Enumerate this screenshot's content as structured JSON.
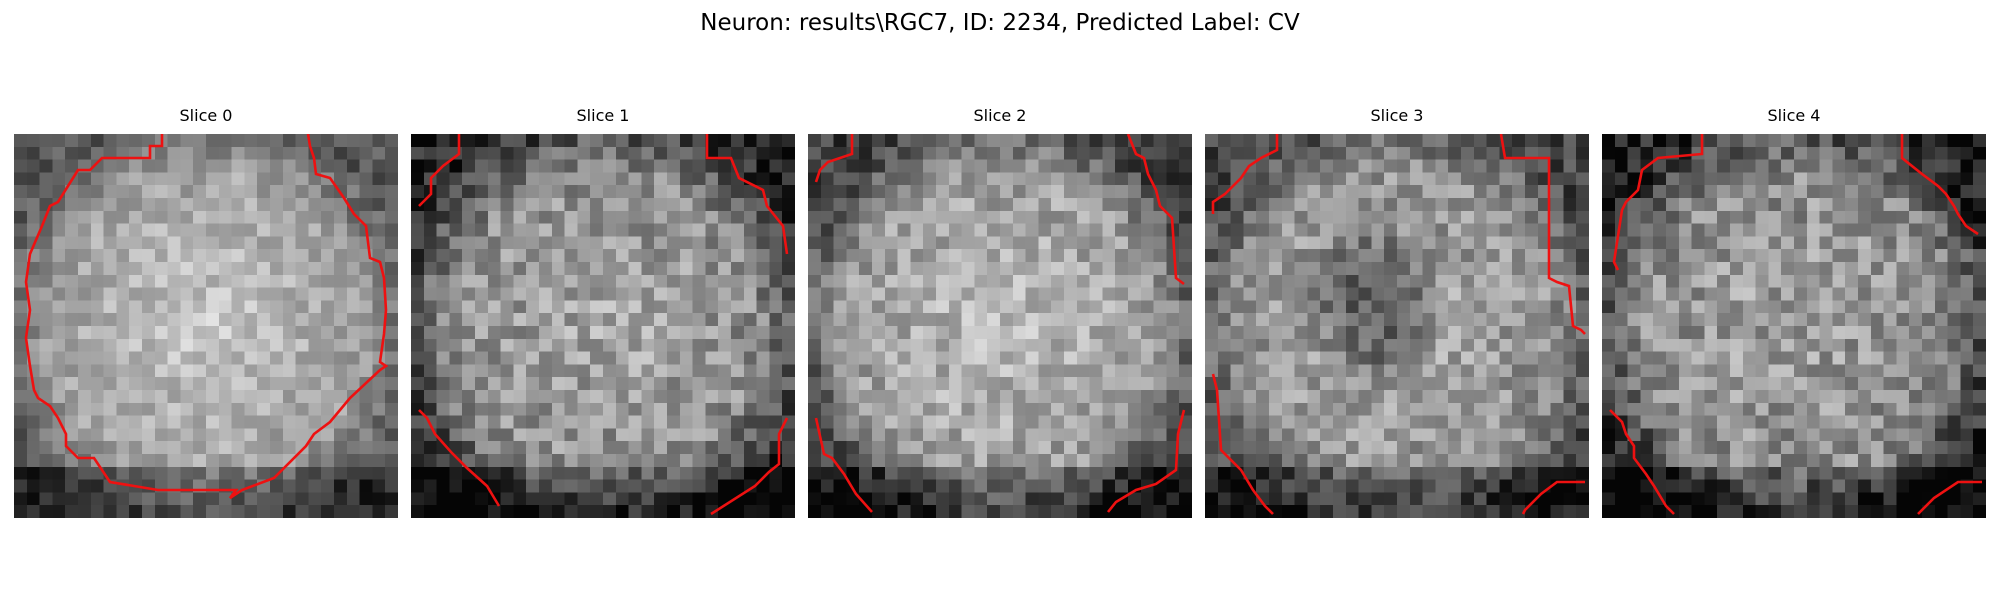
{
  "figure": {
    "title": "Neuron: results\\RGC7, ID: 2234, Predicted Label: CV"
  },
  "contour_color": "#ee1111",
  "colormap": "gray",
  "slices": [
    {
      "label": "Slice 0"
    },
    {
      "label": "Slice 1"
    },
    {
      "label": "Slice 2"
    },
    {
      "label": "Slice 3"
    },
    {
      "label": "Slice 4"
    }
  ]
}
